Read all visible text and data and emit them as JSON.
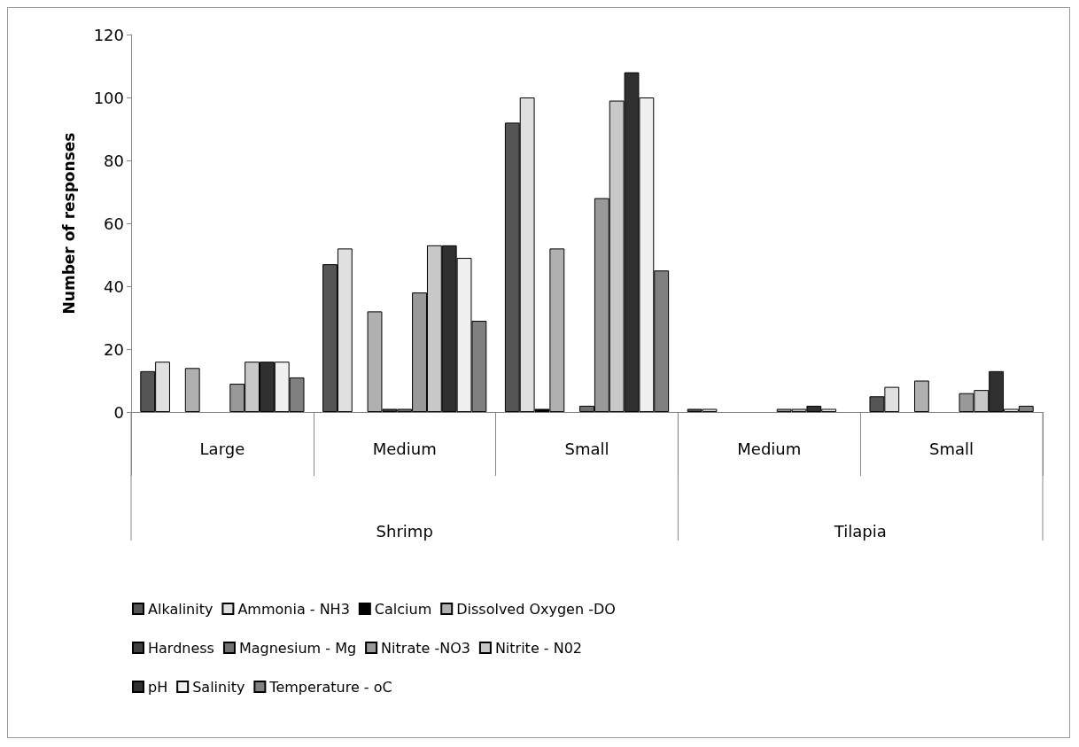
{
  "chart_data": {
    "type": "bar",
    "ylabel": "Number of responses",
    "categories": [
      "Large",
      "Medium",
      "Small",
      "Medium",
      "Small"
    ],
    "annotations": [
      "Shrimp",
      "Tilapia"
    ],
    "series": [
      {
        "name": "Alkalinity",
        "color": "#555555",
        "values": [
          13,
          47,
          92,
          1,
          5
        ]
      },
      {
        "name": "Ammonia - NH3",
        "color": "#e0e0e0",
        "values": [
          16,
          52,
          100,
          1,
          8
        ]
      },
      {
        "name": "Calcium",
        "color": "#000000",
        "values": [
          0,
          0,
          1,
          0,
          0
        ]
      },
      {
        "name": "Dissolved Oxygen -DO",
        "color": "#b0b0b0",
        "values": [
          14,
          32,
          52,
          0,
          10
        ]
      },
      {
        "name": "Hardness",
        "color": "#404040",
        "values": [
          0,
          1,
          0,
          0,
          0
        ]
      },
      {
        "name": "Magnesium - Mg",
        "color": "#707070",
        "values": [
          0,
          1,
          2,
          0,
          0
        ]
      },
      {
        "name": "Nitrate -NO3",
        "color": "#999999",
        "values": [
          9,
          38,
          68,
          1,
          6
        ]
      },
      {
        "name": "Nitrite - N02",
        "color": "#c8c8c8",
        "values": [
          16,
          53,
          99,
          1,
          7
        ]
      },
      {
        "name": "pH",
        "color": "#303030",
        "values": [
          16,
          53,
          108,
          2,
          13
        ]
      },
      {
        "name": "Salinity",
        "color": "#f0f0f0",
        "values": [
          16,
          49,
          100,
          1,
          1
        ]
      },
      {
        "name": "Temperature - oC",
        "color": "#808080",
        "values": [
          11,
          29,
          45,
          0,
          2
        ]
      }
    ],
    "ylim": [
      0,
      120
    ],
    "yticks": [
      0,
      20,
      40,
      60,
      80,
      100,
      120
    ],
    "grid": false,
    "legend": "bottom"
  }
}
